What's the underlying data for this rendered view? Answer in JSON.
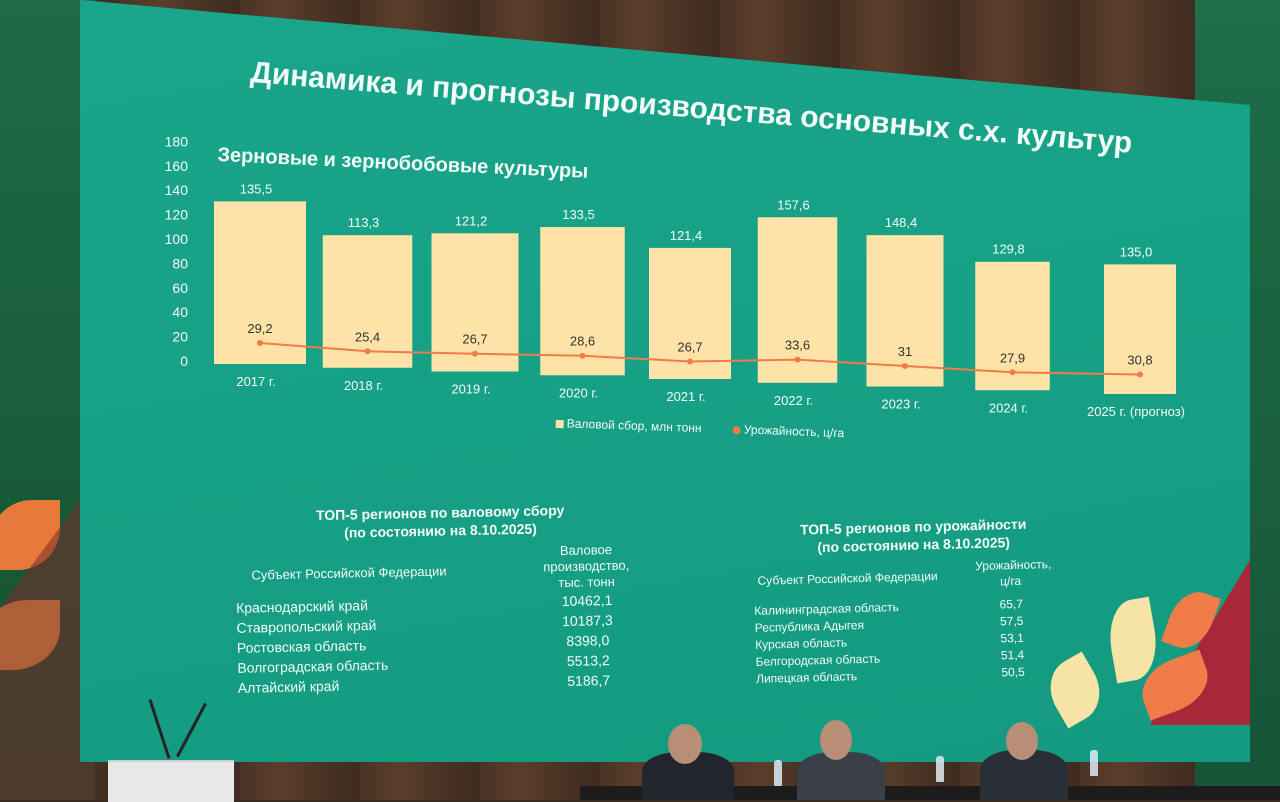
{
  "slide": {
    "title": "Динамика и прогнозы производства основных с.х. культур"
  },
  "chart_data": {
    "type": "bar",
    "title": "Зерновые и зернобобовые культуры",
    "categories": [
      "2017 г.",
      "2018 г.",
      "2019 г.",
      "2020 г.",
      "2021 г.",
      "2022 г.",
      "2023 г.",
      "2024 г.",
      "2025 г. (прогноз)"
    ],
    "series": [
      {
        "name": "Валовой сбор, млн тонн",
        "type": "bar",
        "color": "#fde3a7",
        "values": [
          135.5,
          113.3,
          121.2,
          133.5,
          121.4,
          157.6,
          148.4,
          129.8,
          135.0
        ],
        "labels": [
          "135,5",
          "113,3",
          "121,2",
          "133,5",
          "121,4",
          "157,6",
          "148,4",
          "129,8",
          "135,0"
        ]
      },
      {
        "name": "Урожайность, ц/га",
        "type": "line",
        "color": "#f07c4a",
        "values": [
          29.2,
          25.4,
          26.7,
          28.6,
          26.7,
          33.6,
          31,
          27.9,
          30.8
        ],
        "labels": [
          "29,2",
          "25,4",
          "26,7",
          "28,6",
          "26,7",
          "33,6",
          "31",
          "27,9",
          "30,8"
        ]
      }
    ],
    "yticks": [
      "180",
      "160",
      "140",
      "120",
      "100",
      "80",
      "60",
      "40",
      "20",
      "0"
    ],
    "ylim": [
      0,
      180
    ],
    "legend_position": "bottom"
  },
  "legend": {
    "bar": "Валовой сбор, млн тонн",
    "line": "Урожайность, ц/га"
  },
  "top_gross": {
    "heading_line1": "ТОП-5 регионов по валовому сбору",
    "heading_line2": "(по состоянию на 8.10.2025)",
    "col_subject": "Субъект Российской Федерации",
    "col_value_line1": "Валовое",
    "col_value_line2": "производство,",
    "col_value_line3": "тыс. тонн",
    "rows": [
      {
        "name": "Краснодарский край",
        "value": "10462,1"
      },
      {
        "name": "Ставропольский край",
        "value": "10187,3"
      },
      {
        "name": "Ростовская область",
        "value": "8398,0"
      },
      {
        "name": "Волгоградская область",
        "value": "5513,2"
      },
      {
        "name": "Алтайский край",
        "value": "5186,7"
      }
    ]
  },
  "top_yield": {
    "heading_line1": "ТОП-5 регионов по урожайности",
    "heading_line2": "(по состоянию на 8.10.2025)",
    "col_subject": "Субъект Российской Федерации",
    "col_value_line1": "Урожайность,",
    "col_value_line2": "ц/га",
    "rows": [
      {
        "name": "Калининградская область",
        "value": "65,7"
      },
      {
        "name": "Республика Адыгея",
        "value": "57,5"
      },
      {
        "name": "Курская область",
        "value": "53,1"
      },
      {
        "name": "Белгородская область",
        "value": "51,4"
      },
      {
        "name": "Липецкая область",
        "value": "50,5"
      }
    ]
  },
  "colors": {
    "screen": "#16a085",
    "bar": "#fde3a7",
    "line": "#f07c4a",
    "text": "#f2fbf7"
  }
}
